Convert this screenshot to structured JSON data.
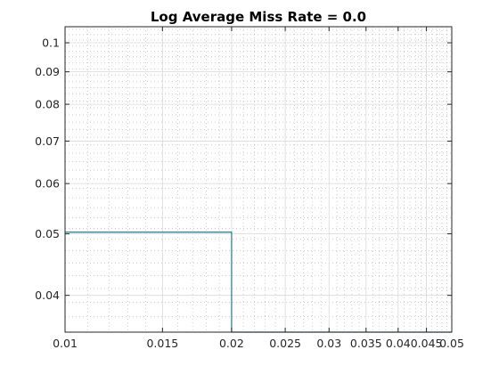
{
  "chart_data": {
    "type": "line",
    "title": "Log Average Miss Rate = 0.0",
    "xlabel": "",
    "ylabel": "",
    "x_scale": "log",
    "y_scale": "log",
    "xlim": [
      0.01,
      0.05
    ],
    "ylim": [
      0.035,
      0.106
    ],
    "grid": true,
    "minor_grid": true,
    "x_ticks": [
      0.01,
      0.015,
      0.02,
      0.025,
      0.03,
      0.035,
      0.04,
      0.045,
      0.05
    ],
    "x_tick_labels": [
      "0.01",
      "0.015",
      "0.02",
      "0.025",
      "0.03",
      "0.035",
      "0.04",
      "0.045",
      "0.05"
    ],
    "y_ticks": [
      0.04,
      0.05,
      0.06,
      0.07,
      0.08,
      0.09,
      0.1
    ],
    "y_tick_labels": [
      "0.04",
      "0.05",
      "0.06",
      "0.07",
      "0.08",
      "0.09",
      "0.1"
    ],
    "series": [
      {
        "color": "#1f7a8c",
        "x": [
          0.01,
          0.02,
          0.02,
          0.05
        ],
        "y": [
          0.0503,
          0.0503,
          0.035,
          0.035
        ]
      }
    ]
  }
}
